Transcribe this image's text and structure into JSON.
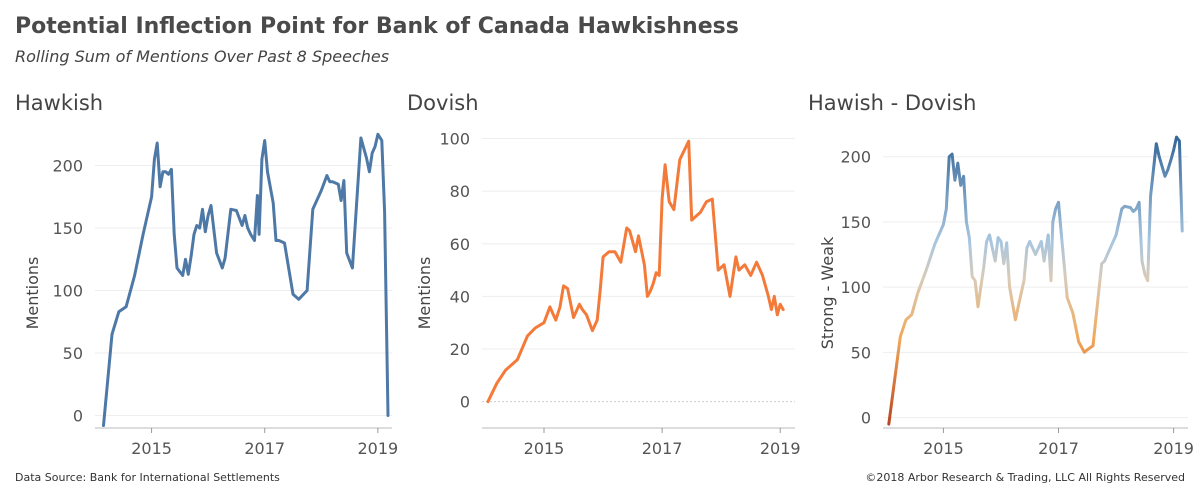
{
  "title": "Potential Inflection Point for Bank of Canada Hawkishness",
  "subtitle": "Rolling Sum of Mentions Over Past 8 Speeches",
  "footer": {
    "source": "Data Source: Bank for International Settlements",
    "copyright": "©2018 Arbor Research & Trading, LLC   All Rights Reserved"
  },
  "colors": {
    "hawkish": "#4e79a7",
    "dovish": "#f47a3a",
    "diverging_high": "#2b5f93",
    "diverging_mid": "#c9d3dd",
    "diverging_low": "#b5431f",
    "axis_text": "#555555",
    "grid": "#eeeeee"
  },
  "chart_data": [
    {
      "type": "line",
      "title": "Hawkish",
      "ylabel": "Mentions",
      "xlabel": "",
      "xlim": [
        2014.0,
        2019.25
      ],
      "ylim": [
        -10,
        230
      ],
      "xticks": [
        2015,
        2017,
        2019
      ],
      "yticks": [
        0,
        50,
        100,
        150,
        200
      ],
      "grid": true,
      "series": [
        {
          "color": "#4e79a7",
          "x": [
            2014.15,
            2014.3,
            2014.42,
            2014.55,
            2014.7,
            2014.85,
            2015.0,
            2015.05,
            2015.1,
            2015.15,
            2015.2,
            2015.25,
            2015.3,
            2015.35,
            2015.4,
            2015.45,
            2015.5,
            2015.55,
            2015.6,
            2015.65,
            2015.7,
            2015.75,
            2015.8,
            2015.85,
            2015.9,
            2015.95,
            2016.0,
            2016.05,
            2016.15,
            2016.25,
            2016.3,
            2016.4,
            2016.5,
            2016.6,
            2016.65,
            2016.7,
            2016.75,
            2016.82,
            2016.87,
            2016.9,
            2016.95,
            2017.0,
            2017.05,
            2017.15,
            2017.2,
            2017.25,
            2017.35,
            2017.5,
            2017.6,
            2017.75,
            2017.85,
            2018.0,
            2018.1,
            2018.15,
            2018.2,
            2018.3,
            2018.35,
            2018.4,
            2018.45,
            2018.55,
            2018.7,
            2018.8,
            2018.85,
            2018.9,
            2018.95,
            2019.0,
            2019.07,
            2019.12,
            2019.18
          ],
          "y": [
            -8,
            65,
            83,
            87,
            112,
            145,
            175,
            205,
            218,
            183,
            195,
            195,
            193,
            197,
            145,
            118,
            115,
            112,
            125,
            113,
            128,
            145,
            152,
            150,
            165,
            147,
            160,
            168,
            130,
            118,
            126,
            165,
            164,
            152,
            160,
            150,
            145,
            140,
            176,
            145,
            205,
            220,
            195,
            170,
            140,
            140,
            138,
            97,
            93,
            100,
            165,
            180,
            192,
            187,
            187,
            185,
            172,
            188,
            130,
            118,
            222,
            206,
            195,
            210,
            215,
            225,
            220,
            163,
            0
          ],
          "note_last_point_excluded": false
        }
      ]
    },
    {
      "type": "line",
      "title": "Dovish",
      "ylabel": "Mentions",
      "xlabel": "",
      "xlim": [
        2013.95,
        2019.25
      ],
      "ylim": [
        -10,
        104
      ],
      "xticks": [
        2015,
        2017,
        2019
      ],
      "yticks": [
        0,
        20,
        40,
        60,
        80,
        100
      ],
      "grid": true,
      "series": [
        {
          "color": "#f47a3a",
          "x": [
            2014.05,
            2014.2,
            2014.35,
            2014.55,
            2014.72,
            2014.85,
            2015.0,
            2015.1,
            2015.2,
            2015.27,
            2015.33,
            2015.4,
            2015.5,
            2015.6,
            2015.65,
            2015.72,
            2015.82,
            2015.9,
            2015.95,
            2016.0,
            2016.1,
            2016.2,
            2016.3,
            2016.4,
            2016.45,
            2016.55,
            2016.6,
            2016.7,
            2016.75,
            2016.8,
            2016.85,
            2016.9,
            2016.95,
            2017.0,
            2017.05,
            2017.12,
            2017.2,
            2017.3,
            2017.45,
            2017.5,
            2017.55,
            2017.65,
            2017.75,
            2017.85,
            2017.95,
            2018.05,
            2018.15,
            2018.25,
            2018.3,
            2018.4,
            2018.5,
            2018.6,
            2018.7,
            2018.8,
            2018.85,
            2018.9,
            2018.95,
            2019.0,
            2019.05
          ],
          "y": [
            0,
            7,
            12,
            16,
            25,
            28,
            30,
            36,
            31,
            36,
            44,
            43,
            32,
            37,
            35,
            33,
            27,
            31,
            42,
            55,
            57,
            57,
            53,
            66,
            65,
            57,
            63,
            52,
            40,
            42,
            45,
            49,
            48,
            77,
            90,
            76,
            73,
            92,
            99,
            69,
            70,
            72,
            76,
            77,
            50,
            52,
            40,
            55,
            50,
            52,
            48,
            53,
            48,
            40,
            35,
            40,
            33,
            37,
            35
          ]
        }
      ]
    },
    {
      "type": "line",
      "title": "Hawish - Dovish",
      "ylabel": "Strong - Weak",
      "xlabel": "",
      "xlim": [
        2013.95,
        2019.25
      ],
      "ylim": [
        -8,
        222
      ],
      "xticks": [
        2015,
        2017,
        2019
      ],
      "yticks": [
        0,
        50,
        100,
        150,
        200
      ],
      "grid": true,
      "series": [
        {
          "color_scale": "diverging",
          "x": [
            2014.05,
            2014.15,
            2014.25,
            2014.35,
            2014.45,
            2014.55,
            2014.7,
            2014.85,
            2015.0,
            2015.05,
            2015.1,
            2015.15,
            2015.2,
            2015.25,
            2015.3,
            2015.35,
            2015.4,
            2015.45,
            2015.5,
            2015.55,
            2015.6,
            2015.65,
            2015.7,
            2015.75,
            2015.8,
            2015.9,
            2015.95,
            2016.0,
            2016.05,
            2016.1,
            2016.15,
            2016.25,
            2016.3,
            2016.4,
            2016.45,
            2016.5,
            2016.6,
            2016.7,
            2016.75,
            2016.82,
            2016.87,
            2016.9,
            2016.95,
            2017.0,
            2017.05,
            2017.15,
            2017.25,
            2017.35,
            2017.45,
            2017.5,
            2017.6,
            2017.75,
            2017.8,
            2017.85,
            2018.0,
            2018.1,
            2018.15,
            2018.25,
            2018.3,
            2018.35,
            2018.4,
            2018.45,
            2018.5,
            2018.55,
            2018.6,
            2018.7,
            2018.75,
            2018.85,
            2018.9,
            2018.95,
            2019.0,
            2019.05,
            2019.1,
            2019.15
          ],
          "y": [
            -5,
            28,
            62,
            75,
            79,
            95,
            113,
            133,
            148,
            160,
            200,
            202,
            182,
            195,
            178,
            185,
            150,
            138,
            108,
            105,
            85,
            100,
            115,
            135,
            140,
            120,
            138,
            135,
            118,
            134,
            100,
            75,
            85,
            105,
            130,
            135,
            125,
            135,
            120,
            140,
            105,
            150,
            160,
            165,
            140,
            92,
            80,
            58,
            50,
            52,
            55,
            118,
            120,
            125,
            140,
            160,
            162,
            161,
            158,
            160,
            165,
            120,
            110,
            105,
            170,
            210,
            200,
            185,
            190,
            197,
            205,
            215,
            212,
            143
          ]
        }
      ]
    }
  ]
}
